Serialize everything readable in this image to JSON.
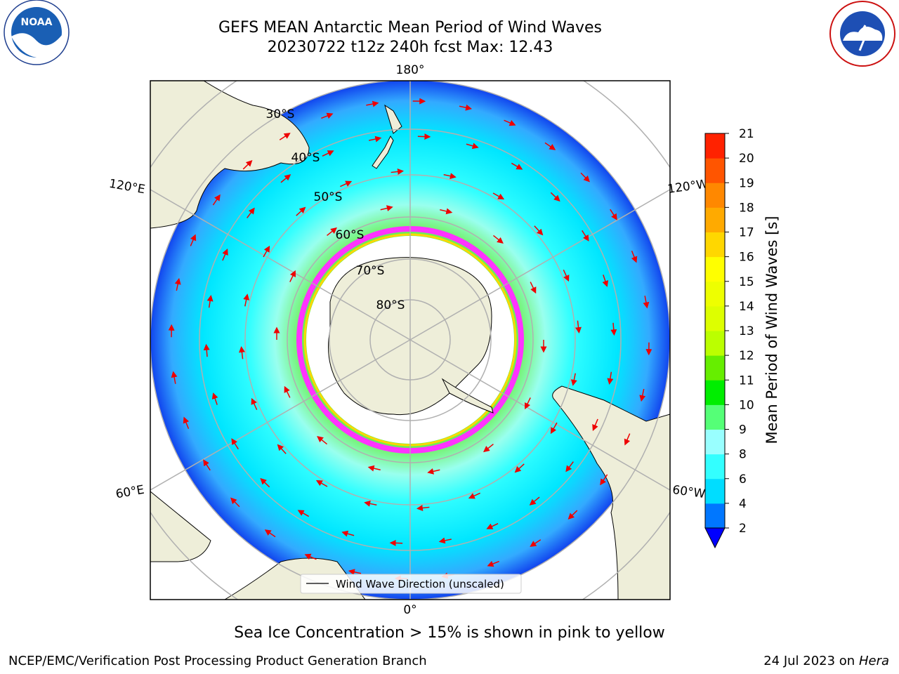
{
  "title": {
    "line1": "GEFS MEAN Antarctic Mean Period of Wind Waves",
    "line2": "20230722 t12z 240h fcst   Max: 12.43"
  },
  "logos": {
    "noaa": {
      "name": "noaa-logo",
      "text": "NOAA",
      "ring_text": "NATIONAL OCEANIC AND ATMOSPHERIC ADMINISTRATION · U.S. DEPARTMENT OF COMMERCE"
    },
    "nws": {
      "name": "nws-logo",
      "ring_text": "NATIONAL WEATHER SERVICE"
    }
  },
  "map": {
    "projection": "south-polar-stereographic",
    "longitude_labels": {
      "top": "180°",
      "bottom": "0°",
      "upper_left": "120°E",
      "lower_left": "60°E",
      "upper_right": "120°W",
      "lower_right": "60°W"
    },
    "latitude_labels": [
      "30°S",
      "40°S",
      "50°S",
      "60°S",
      "70°S",
      "80°S"
    ],
    "legend_label": "Wind Wave Direction (unscaled)",
    "colors": {
      "land": "#eeeed9",
      "sea_ice_low": "#ff33ff",
      "sea_ice_high": "#ffd700",
      "arrow": "#ee0000"
    }
  },
  "colorbar": {
    "label": "Mean Period of Wind Waves [s]",
    "ticks": [
      "2",
      "4",
      "6",
      "8",
      "9",
      "10",
      "11",
      "12",
      "13",
      "14",
      "15",
      "16",
      "17",
      "18",
      "19",
      "20",
      "21"
    ],
    "colors": [
      "#0077ff",
      "#00ddff",
      "#33ffff",
      "#99ffff",
      "#55ff77",
      "#00ee00",
      "#66ee00",
      "#bbff00",
      "#ddff00",
      "#eeff00",
      "#ffff00",
      "#ffd700",
      "#ffaa00",
      "#ff8800",
      "#ff5500",
      "#ff2200"
    ],
    "under_color": "#0000ff"
  },
  "caption": "Sea Ice Concentration > 15% is shown in pink to yellow",
  "footer": {
    "left": "NCEP/EMC/Verification Post Processing Product Generation Branch",
    "date": "24 Jul 2023 on ",
    "machine": "Hera"
  }
}
